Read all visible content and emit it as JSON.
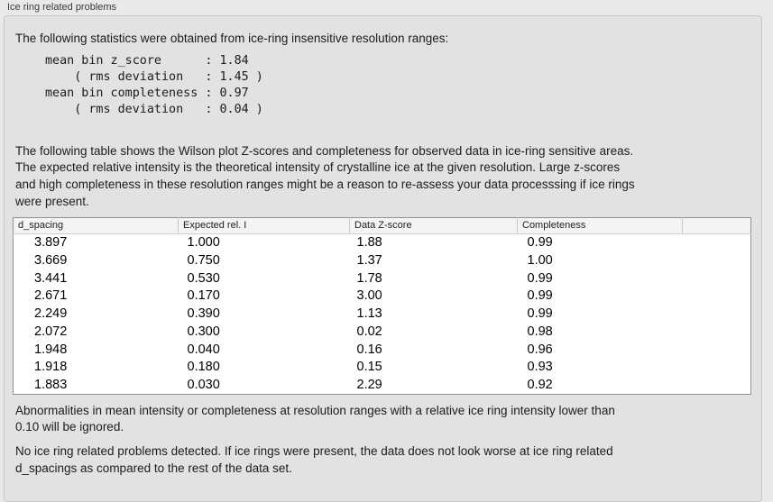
{
  "panel": {
    "title": "Ice ring related problems"
  },
  "sections": {
    "intro": "The following statistics were obtained from ice-ring insensitive resolution ranges:",
    "stats_block": "mean bin z_score      : 1.84\n    ( rms deviation   : 1.45 )\nmean bin completeness : 0.97\n    ( rms deviation   : 0.04 )",
    "table_intro": "The following table shows the Wilson plot Z-scores and completeness for observed data in ice-ring sensitive areas.\nThe expected relative intensity is the theoretical intensity of crystalline ice at the given resolution. Large z-scores\nand high completeness in these resolution ranges might be a reason to re-assess your data processsing if ice rings\nwere present.",
    "note_threshold": "Abnormalities in mean intensity or completeness at resolution ranges with a relative ice ring intensity lower than\n0.10 will be ignored.",
    "note_result": "No ice ring related problems detected. If ice rings were present, the data does not look worse at ice ring related\nd_spacings as compared to the rest of the data set."
  },
  "stats": {
    "mean_bin_z_score": "1.84",
    "z_score_rms_deviation": "1.45",
    "mean_bin_completeness": "0.97",
    "completeness_rms_deviation": "0.04"
  },
  "table": {
    "columns": [
      "d_spacing",
      "Expected rel. I",
      "Data Z-score",
      "Completeness",
      ""
    ],
    "rows": [
      [
        "3.897",
        "1.000",
        "1.88",
        "0.99"
      ],
      [
        "3.669",
        "0.750",
        "1.37",
        "1.00"
      ],
      [
        "3.441",
        "0.530",
        "1.78",
        "0.99"
      ],
      [
        "2.671",
        "0.170",
        "3.00",
        "0.99"
      ],
      [
        "2.249",
        "0.390",
        "1.13",
        "0.99"
      ],
      [
        "2.072",
        "0.300",
        "0.02",
        "0.98"
      ],
      [
        "1.948",
        "0.040",
        "0.16",
        "0.96"
      ],
      [
        "1.918",
        "0.180",
        "0.15",
        "0.93"
      ],
      [
        "1.883",
        "0.030",
        "2.29",
        "0.92"
      ]
    ]
  },
  "colors": {
    "page_bg": "#e9e9e9",
    "panel_bg": "#e2e2e2",
    "panel_border": "#c6c6c6",
    "table_border": "#919191",
    "table_header_bg": "#f4f4f4",
    "text": "#1c1c1c"
  }
}
